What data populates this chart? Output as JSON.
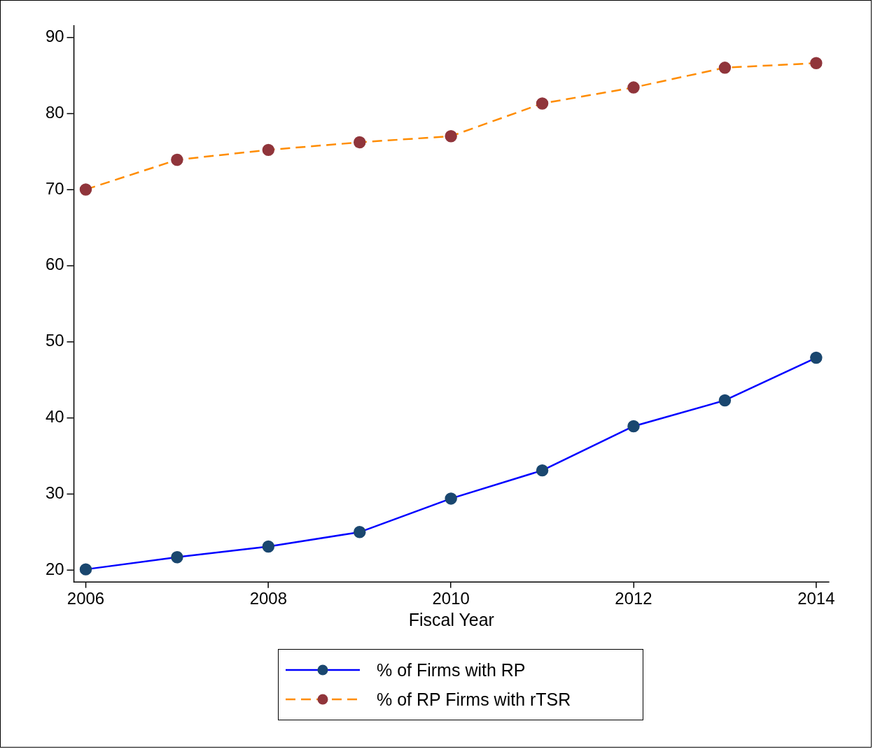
{
  "chart_data": {
    "type": "line",
    "xlabel": "Fiscal Year",
    "x": [
      2006,
      2007,
      2008,
      2009,
      2010,
      2011,
      2012,
      2013,
      2014
    ],
    "series": [
      {
        "name": "% of Firms with RP",
        "color": "#0000ff",
        "colors": [
          "#1a476f",
          "#1a476f",
          "#1a476f",
          "#1a476f",
          "#1a476f",
          "#1a476f",
          "#1a476f",
          "#1a476f",
          "#1a476f"
        ],
        "line_style": "solid",
        "values": [
          20.1,
          21.7,
          23.1,
          25.0,
          29.4,
          33.1,
          38.9,
          42.3,
          47.9
        ]
      },
      {
        "name": "% of RP Firms with rTSR",
        "color": "#ff8c00",
        "colors": [
          "#90353b",
          "#90353b",
          "#90353b",
          "#90353b",
          "#90353b",
          "#90353b",
          "#90353b",
          "#90353b",
          "#90353b"
        ],
        "line_style": "dashed",
        "values": [
          70.0,
          73.9,
          75.2,
          76.2,
          77.0,
          81.3,
          83.4,
          86.0,
          86.6
        ]
      }
    ],
    "xlim": [
      2005.87,
      2014.14
    ],
    "xticks": [
      2006,
      2008,
      2010,
      2012,
      2014
    ],
    "ylim": [
      18.4,
      91.5
    ],
    "yticks": [
      20,
      30,
      40,
      50,
      60,
      70,
      80,
      90
    ],
    "grid": false,
    "legend": "bottom",
    "marker": "circle"
  }
}
